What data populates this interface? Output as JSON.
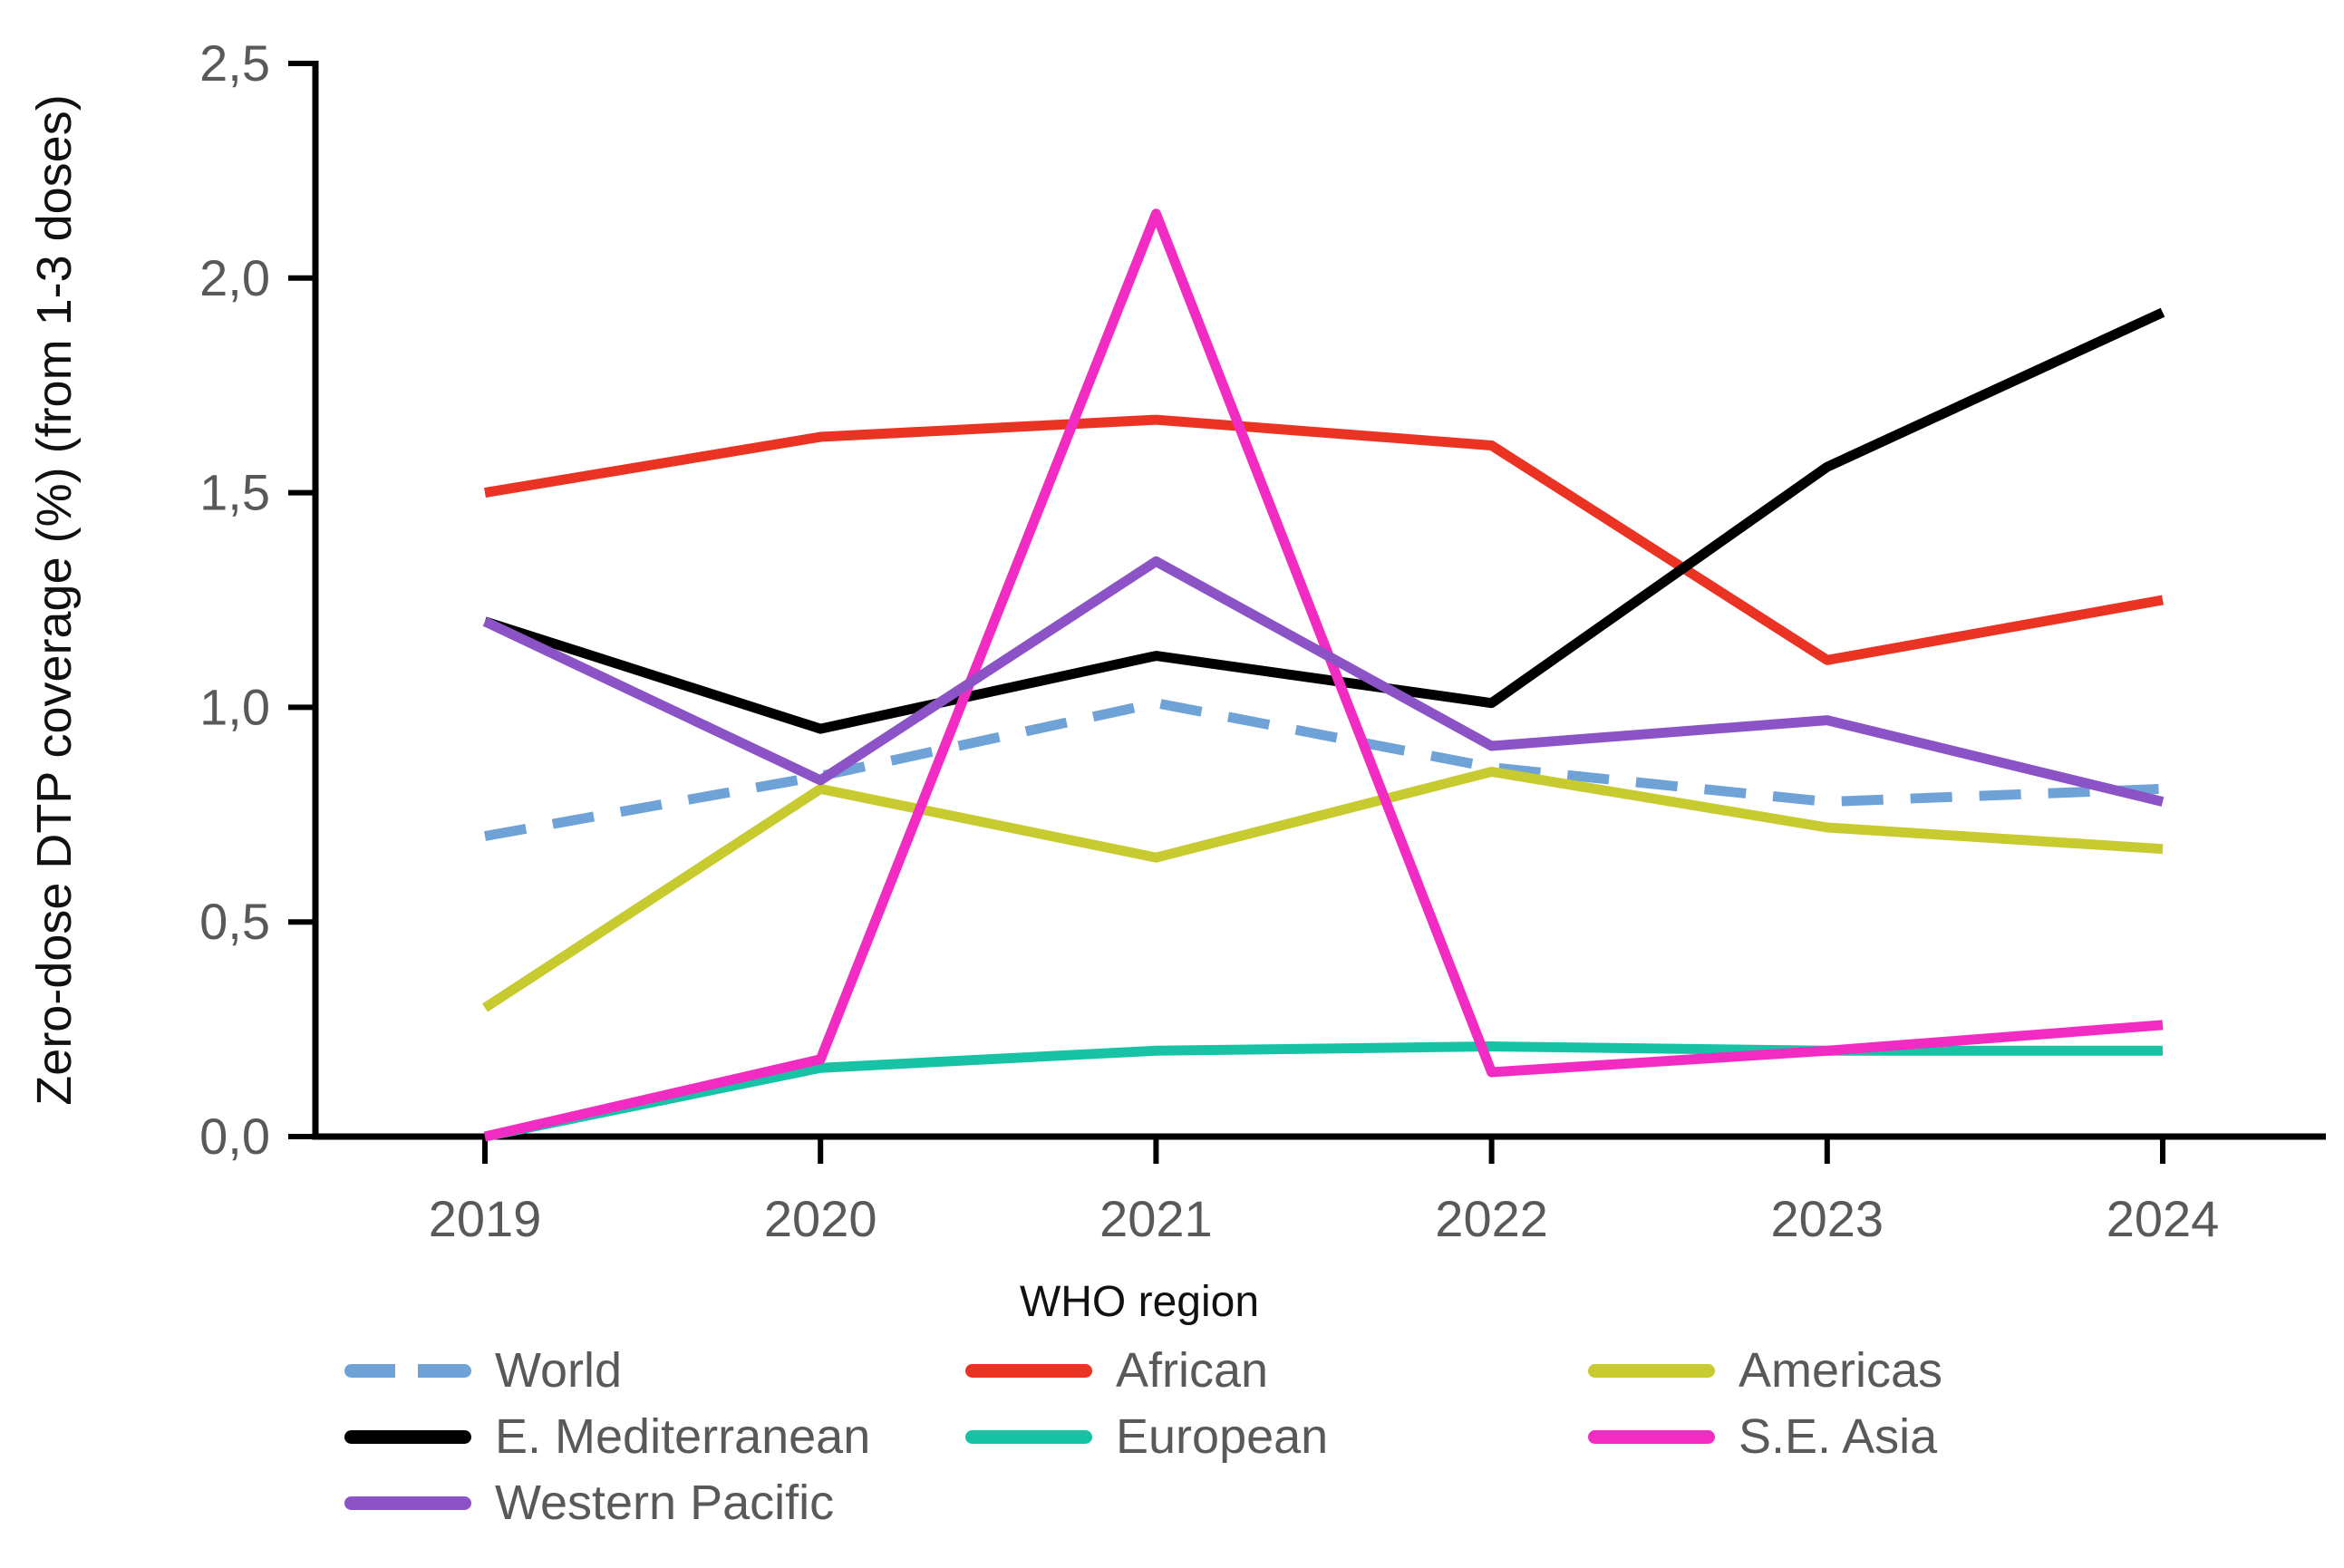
{
  "chart_data": {
    "type": "line",
    "title": "",
    "xlabel": "WHO region",
    "ylabel": "Zero-dose DTP coverage (%) (from 1-3 doses)",
    "categories": [
      "2019",
      "2020",
      "2021",
      "2022",
      "2023",
      "2024"
    ],
    "ylim": [
      0,
      2.5
    ],
    "y_tick_step": 0.5,
    "y_tick_labels": [
      "0,0",
      "0,5",
      "1,0",
      "1,5",
      "2,0",
      "2,5"
    ],
    "decimal_separator": ",",
    "grid": false,
    "legend_position": "bottom",
    "series": [
      {
        "name": "World",
        "color": "#6FA3D8",
        "dashed": true,
        "values": [
          0.7,
          0.84,
          1.01,
          0.86,
          0.78,
          0.81
        ]
      },
      {
        "name": "African",
        "color": "#EA3323",
        "dashed": false,
        "values": [
          1.5,
          1.63,
          1.67,
          1.61,
          1.11,
          1.25
        ]
      },
      {
        "name": "Americas",
        "color": "#C8CB2F",
        "dashed": false,
        "values": [
          0.3,
          0.81,
          0.65,
          0.85,
          0.72,
          0.67
        ]
      },
      {
        "name": "E. Mediterranean",
        "color": "#000000",
        "dashed": false,
        "values": [
          1.2,
          0.95,
          1.12,
          1.01,
          1.56,
          1.92
        ]
      },
      {
        "name": "European",
        "color": "#17C3A4",
        "dashed": false,
        "values": [
          0.0,
          0.16,
          0.2,
          0.21,
          0.2,
          0.2
        ]
      },
      {
        "name": "S.E. Asia",
        "color": "#F22CC3",
        "dashed": false,
        "values": [
          0.0,
          0.18,
          2.15,
          0.15,
          0.2,
          0.26
        ]
      },
      {
        "name": "Western Pacific",
        "color": "#8C53C6",
        "dashed": false,
        "values": [
          1.2,
          0.83,
          1.34,
          0.91,
          0.97,
          0.78
        ]
      }
    ],
    "legend_rows": [
      [
        "World",
        "African",
        "Americas"
      ],
      [
        "E. Mediterranean",
        "European",
        "S.E. Asia"
      ],
      [
        "Western Pacific"
      ]
    ]
  }
}
